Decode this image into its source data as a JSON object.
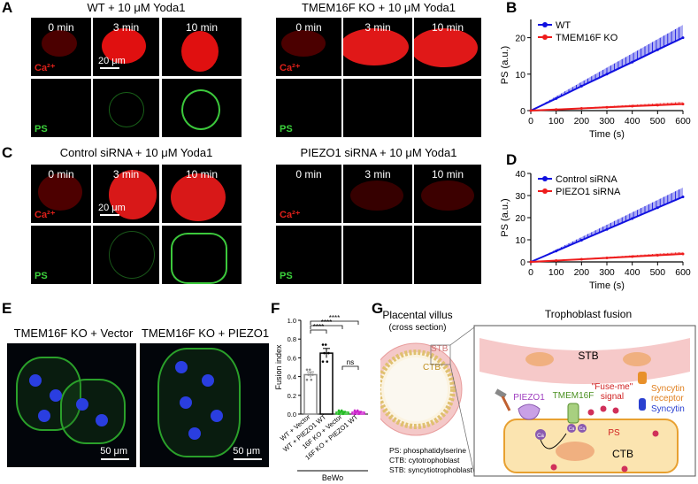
{
  "panels": {
    "A": {
      "label": "A",
      "left_title": "WT + 10 μM Yoda1",
      "right_title": "TMEM16F KO + 10 μM Yoda1",
      "times": [
        "0 min",
        "3 min",
        "10 min"
      ],
      "ca_label": "Ca²⁺",
      "ps_label": "PS",
      "scale": "20 μm"
    },
    "C": {
      "label": "C",
      "left_title": "Control siRNA + 10 μM Yoda1",
      "right_title": "PIEZO1 siRNA + 10 μM Yoda1",
      "times": [
        "0 min",
        "3 min",
        "10 min"
      ],
      "ca_label": "Ca²⁺",
      "ps_label": "PS",
      "scale": "20 μm"
    },
    "E": {
      "label": "E",
      "left_title": "TMEM16F KO + Vector",
      "right_title": "TMEM16F KO + PIEZO1",
      "scale": "50 μm"
    },
    "F": {
      "label": "F",
      "sig": "****",
      "ns": "ns"
    },
    "G": {
      "label": "G",
      "villus_title": "Placental villus",
      "villus_sub": "(cross section)",
      "fusion_title": "Trophoblast fusion",
      "stb": "STB",
      "ctb": "CTB",
      "piezo1": "PIEZO1",
      "tmem16f": "TMEM16F",
      "fuse_me": "\"Fuse-me\"",
      "signal": "signal",
      "ps": "PS",
      "syncytin_receptor_1": "Syncytin",
      "syncytin_receptor_2": "receptor",
      "syncytin": "Syncytin",
      "ca": "Ca",
      "legend": [
        "PS: phosphatidylserine",
        "CTB: cytotrophoblast",
        "STB: syncytiotrophoblast"
      ]
    }
  },
  "chart_data": [
    {
      "id": "B",
      "type": "line",
      "label": "B",
      "xlabel": "Time (s)",
      "ylabel": "PS (a.u.)",
      "xlim": [
        0,
        600
      ],
      "ylim": [
        0,
        25
      ],
      "xticks": [
        0,
        100,
        200,
        300,
        400,
        500,
        600
      ],
      "yticks": [
        0,
        10,
        20
      ],
      "series": [
        {
          "name": "WT",
          "color": "#1010e0",
          "x": [
            0,
            100,
            200,
            300,
            400,
            500,
            600
          ],
          "y": [
            0,
            3.3,
            6.7,
            10,
            13.3,
            16.7,
            20
          ],
          "upper": [
            0,
            3.9,
            7.9,
            11.8,
            15.7,
            19.6,
            23.5
          ]
        },
        {
          "name": "TMEM16F KO",
          "color": "#ee1c1c",
          "x": [
            0,
            100,
            200,
            300,
            400,
            500,
            600
          ],
          "y": [
            0,
            0.3,
            0.6,
            0.9,
            1.2,
            1.5,
            1.8
          ],
          "upper": [
            0,
            0.4,
            0.8,
            1.2,
            1.6,
            2.0,
            2.4
          ]
        }
      ]
    },
    {
      "id": "D",
      "type": "line",
      "label": "D",
      "xlabel": "Time (s)",
      "ylabel": "PS (a.u.)",
      "xlim": [
        0,
        600
      ],
      "ylim": [
        0,
        40
      ],
      "xticks": [
        0,
        100,
        200,
        300,
        400,
        500,
        600
      ],
      "yticks": [
        0,
        10,
        20,
        30,
        40
      ],
      "series": [
        {
          "name": "Control siRNA",
          "color": "#1010e0",
          "x": [
            0,
            100,
            200,
            300,
            400,
            500,
            600
          ],
          "y": [
            0,
            4.9,
            9.8,
            14.7,
            19.6,
            24.5,
            29.4
          ],
          "upper": [
            0,
            5.6,
            11.2,
            16.8,
            22.4,
            28,
            33.6
          ]
        },
        {
          "name": "PIEZO1 siRNA",
          "color": "#ee1c1c",
          "x": [
            0,
            100,
            200,
            300,
            400,
            500,
            600
          ],
          "y": [
            0,
            0.6,
            1.2,
            1.8,
            2.4,
            3.0,
            3.6
          ],
          "upper": [
            0,
            0.75,
            1.5,
            2.25,
            3.0,
            3.75,
            4.5
          ]
        }
      ]
    },
    {
      "id": "F",
      "type": "bar",
      "label": "F",
      "ylabel": "Fusion index",
      "ylim": [
        0,
        1.0
      ],
      "yticks": [
        0,
        0.2,
        0.4,
        0.6,
        0.8,
        1.0
      ],
      "categories": [
        "WT + Vector",
        "WT + PIEZO1 WT",
        "16F KO + Vector",
        "16F KO + PIEZO1 WT"
      ],
      "values": [
        0.42,
        0.65,
        0.02,
        0.02
      ],
      "errors": [
        0.03,
        0.05,
        0.01,
        0.01
      ],
      "colors": [
        "#888888",
        "#000000",
        "#22bb22",
        "#cc22cc"
      ],
      "group": "BeWo"
    }
  ]
}
